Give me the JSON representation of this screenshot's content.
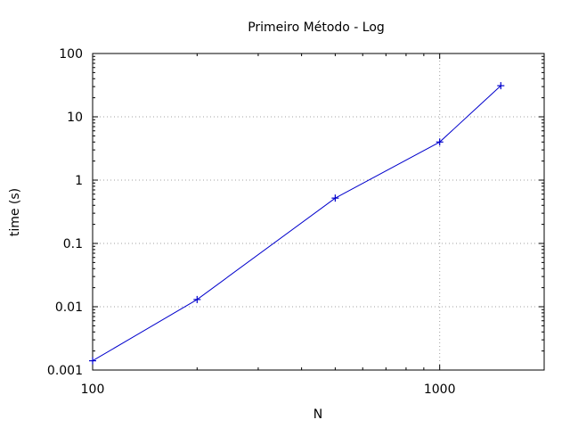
{
  "chart_data": {
    "type": "line",
    "title": "Primeiro Método - Log",
    "xlabel": "N",
    "ylabel": "time (s)",
    "xscale": "log",
    "yscale": "log",
    "xlim": [
      100,
      2000
    ],
    "ylim": [
      0.001,
      100
    ],
    "xticks": [
      {
        "value": 100,
        "label": "100"
      },
      {
        "value": 1000,
        "label": "1000"
      }
    ],
    "yticks": [
      {
        "value": 0.001,
        "label": "0.001"
      },
      {
        "value": 0.01,
        "label": "0.01"
      },
      {
        "value": 0.1,
        "label": "0.1"
      },
      {
        "value": 1,
        "label": "1"
      },
      {
        "value": 10,
        "label": "10"
      },
      {
        "value": 100,
        "label": "100"
      }
    ],
    "grid": true,
    "legend": "none",
    "series": [
      {
        "color": "#0000cc",
        "marker": "plus",
        "x": [
          100,
          200,
          500,
          1000,
          1500
        ],
        "y": [
          0.0014,
          0.013,
          0.52,
          4.0,
          31
        ]
      }
    ]
  }
}
